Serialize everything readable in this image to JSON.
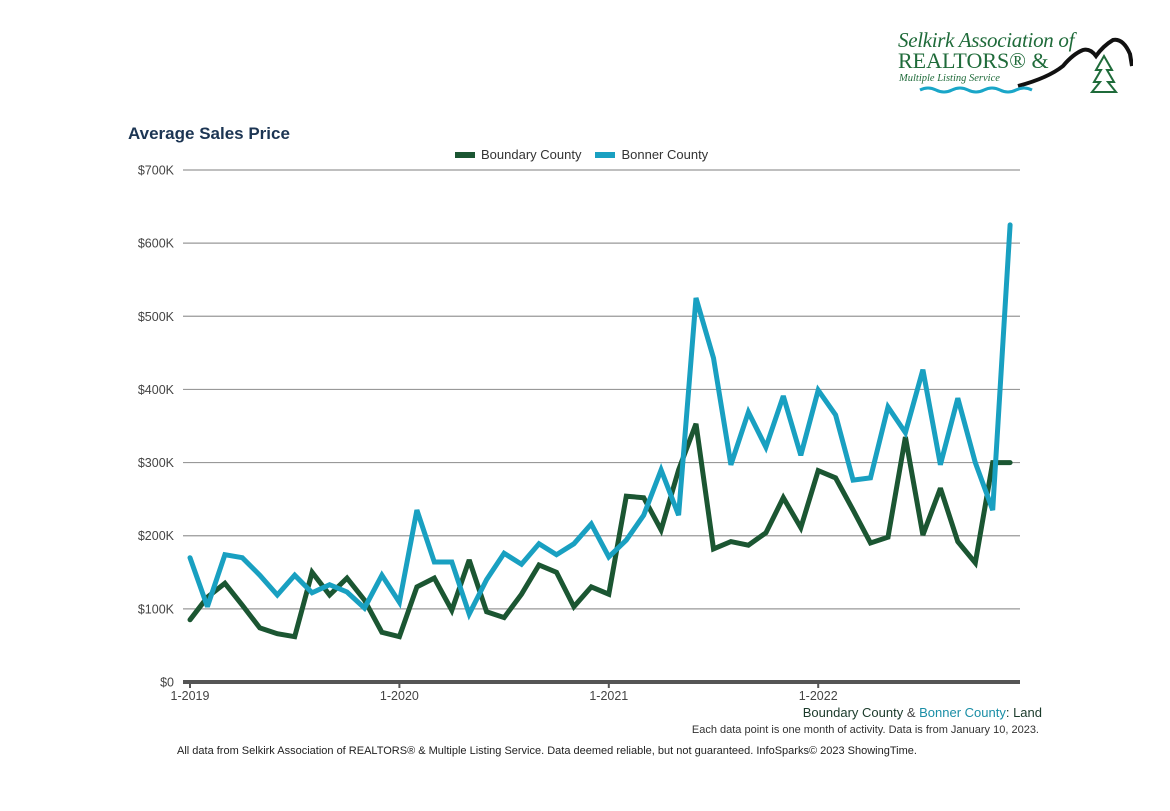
{
  "logo": {
    "line1": "Selkirk Association of",
    "line2": "REALTORS® &",
    "line3": "Multiple Listing Service"
  },
  "colors": {
    "boundary": "#1b5632",
    "bonner": "#19a0c1",
    "title": "#1c3553",
    "grid": "#999999",
    "axis": "#555555"
  },
  "chart_data": {
    "type": "line",
    "title": "Average Sales Price",
    "xlabel": "",
    "ylabel": "",
    "ylim": [
      0,
      700000
    ],
    "yticks": [
      0,
      100000,
      200000,
      300000,
      400000,
      500000,
      600000,
      700000
    ],
    "ytick_labels": [
      "$0",
      "$100K",
      "$200K",
      "$300K",
      "$400K",
      "$500K",
      "$600K",
      "$700K"
    ],
    "xtick_labels": [
      "1-2019",
      "1-2020",
      "1-2021",
      "1-2022"
    ],
    "xtick_index": [
      0,
      12,
      24,
      36
    ],
    "x_start": "1-2019",
    "x_end": "12-2022",
    "grid": true,
    "legend_position": "top-center",
    "series": [
      {
        "name": "Boundary County",
        "values": [
          85000,
          116000,
          135000,
          105000,
          74000,
          66000,
          62000,
          150000,
          119000,
          142000,
          112000,
          68000,
          62000,
          130000,
          142000,
          98000,
          167000,
          96000,
          88000,
          120000,
          160000,
          150000,
          103000,
          130000,
          120000,
          254000,
          252000,
          208000,
          290000,
          353000,
          182000,
          192000,
          187000,
          204000,
          252000,
          211000,
          289000,
          279000,
          235000,
          190000,
          198000,
          335000,
          201000,
          265000,
          192000,
          163000,
          300000,
          300000
        ]
      },
      {
        "name": "Bonner County",
        "values": [
          170000,
          103000,
          174000,
          170000,
          146000,
          119000,
          146000,
          122000,
          133000,
          123000,
          101000,
          146000,
          109000,
          235000,
          164000,
          164000,
          93000,
          140000,
          176000,
          161000,
          189000,
          174000,
          189000,
          216000,
          171000,
          194000,
          228000,
          290000,
          228000,
          525000,
          443000,
          297000,
          369000,
          321000,
          391000,
          310000,
          399000,
          365000,
          276000,
          279000,
          376000,
          341000,
          427000,
          297000,
          388000,
          300000,
          235000,
          625000
        ]
      }
    ]
  },
  "caption": {
    "boundary": "Boundary County",
    "amp": " & ",
    "bonner": "Bonner County",
    "suffix": ": Land"
  },
  "note": "Each data point is one month of activity. Data is from January 10, 2023.",
  "footer": "All data from Selkirk Association of REALTORS® & Multiple Listing Service. Data deemed reliable, but not guaranteed. InfoSparks© 2023 ShowingTime."
}
